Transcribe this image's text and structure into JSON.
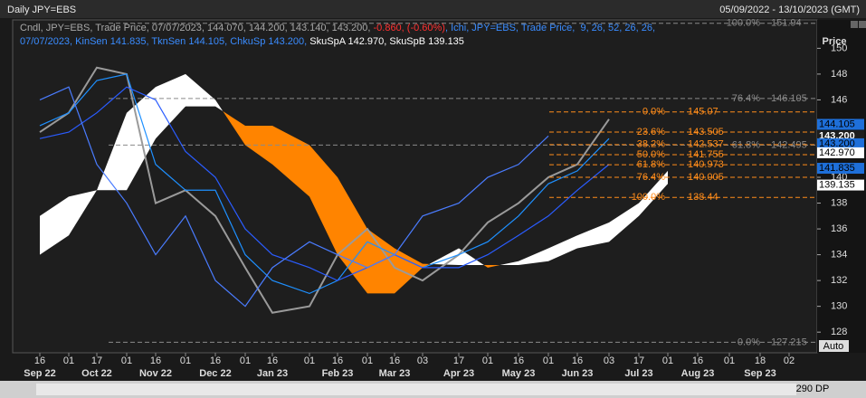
{
  "header": {
    "title": "Daily JPY=EBS",
    "range": "05/09/2022 - 13/10/2023 (GMT)"
  },
  "legend": {
    "line1": [
      {
        "text": "Cndl, JPY=EBS, Trade Price, 07/07/2023, 144.070, 144.200, 143.140, 143.200, ",
        "color": "#a8a8a8"
      },
      {
        "text": "-0.860, (-0.60%)",
        "color": "#ff3030"
      },
      {
        "text": ", Ichi, JPY=EBS, Trade Price,  9, 26, 52, 26, 26,",
        "color": "#3a8cff"
      }
    ],
    "line2": [
      {
        "text": "07/07/2023, KinSen 141.835, TknSen 144.105, ChkuSp 143.200, ",
        "color": "#3a8cff"
      },
      {
        "text": "SkuSpA 142.970, SkuSpB 139.135",
        "color": "#ffffff"
      }
    ]
  },
  "chart_data": {
    "type": "line",
    "y_axis_label": "Price",
    "x": [
      "16",
      "01",
      "17",
      "01",
      "16",
      "01",
      "16",
      "01",
      "16",
      "01",
      "16",
      "01",
      "16",
      "03",
      "17",
      "01",
      "16",
      "01",
      "16",
      "03",
      "17",
      "01",
      "16",
      "01",
      "18",
      "02"
    ],
    "months": [
      "Sep 22",
      "Oct 22",
      "Nov 22",
      "Dec 22",
      "Jan 23",
      "Feb 23",
      "Mar 23",
      "Apr 23",
      "May 23",
      "Jun 23",
      "Jul 23",
      "Aug 23",
      "Sep 23"
    ],
    "series": [
      {
        "name": "Price",
        "color": "#9a9a9a",
        "values": [
          143.5,
          145,
          148.5,
          148,
          138,
          139,
          137,
          133,
          129.5,
          130,
          134,
          136,
          133,
          132,
          134,
          136.5,
          138,
          140,
          141,
          144.5,
          null,
          null,
          null,
          null,
          null,
          null
        ]
      },
      {
        "name": "TknSen",
        "color": "#1e90ff",
        "values": [
          144,
          145,
          147.5,
          148,
          141,
          139,
          139,
          134,
          132,
          131,
          132,
          135,
          134,
          133,
          134,
          135,
          137,
          139.5,
          140.5,
          143,
          null,
          null,
          null,
          null,
          null,
          null
        ]
      },
      {
        "name": "KinSen",
        "color": "#2a5cff",
        "values": [
          143,
          143.5,
          145,
          147,
          146,
          142,
          140,
          136,
          134,
          133,
          132,
          133,
          134,
          133,
          133,
          134,
          135.5,
          137,
          139,
          141,
          null,
          null,
          null,
          null,
          null,
          null
        ]
      },
      {
        "name": "ChkuSp",
        "color": "#4a7cff",
        "values": [
          146,
          147,
          141,
          138,
          134,
          137,
          132,
          130,
          133,
          135,
          134,
          133,
          134,
          137,
          138,
          140,
          141,
          143.2,
          null,
          null,
          null,
          null,
          null,
          null,
          null,
          null
        ]
      },
      {
        "name": "SkuSpA",
        "values": [
          137,
          138.5,
          139,
          145,
          147,
          148,
          146,
          142.5,
          141,
          138.5,
          134,
          131,
          131,
          133,
          134.5,
          133,
          133.5,
          134.5,
          135.5,
          136.5,
          138,
          140.5,
          null,
          null,
          null,
          null
        ]
      },
      {
        "name": "SkuSpB",
        "values": [
          134,
          135.5,
          139,
          139,
          143,
          145.5,
          145.5,
          144,
          144,
          142.5,
          140,
          136,
          134.5,
          133.3,
          133.2,
          133.2,
          133.2,
          133.5,
          134.5,
          135,
          137,
          139.5,
          null,
          null,
          null,
          null
        ]
      }
    ],
    "cloud_up_color": "#ffffff",
    "cloud_down_color": "#ff8400",
    "ylim": [
      126.4,
      152.2
    ],
    "yticks": [
      128,
      130,
      132,
      134,
      136,
      138,
      140,
      142,
      144,
      146,
      148,
      150
    ],
    "fib_a": {
      "color": "#8a8a8a",
      "levels": [
        {
          "label": "100.0%",
          "value": 151.94
        },
        {
          "label": "76.4%",
          "value": 146.105
        },
        {
          "label": "61.8%",
          "value": 142.495
        },
        {
          "label": "0.0%",
          "value": 127.215
        }
      ]
    },
    "fib_b": {
      "color": "#ff8c1a",
      "levels": [
        {
          "label": "0.0%",
          "value": 145.07
        },
        {
          "label": "23.6%",
          "value": 143.505
        },
        {
          "label": "38.2%",
          "value": 142.537
        },
        {
          "label": "50.0%",
          "value": 141.755
        },
        {
          "label": "61.8%",
          "value": 140.973
        },
        {
          "label": "76.4%",
          "value": 140.005
        },
        {
          "label": "100.0%",
          "value": 138.44
        }
      ]
    },
    "tags": [
      {
        "label": "144.105",
        "value": 144.105,
        "color": "#1e6fd9",
        "text_color": "#000000"
      },
      {
        "label": "143.200",
        "value": 143.2,
        "color": "#1e1e1e",
        "text_color": "#ffffff"
      },
      {
        "label": "143.200",
        "value": 142.6,
        "color": "#1e6fd9",
        "text_color": "#000000"
      },
      {
        "label": "142.970",
        "value": 141.9,
        "color": "#ffffff",
        "text_color": "#000000"
      },
      {
        "label": "141.835",
        "value": 140.7,
        "color": "#1e6fd9",
        "text_color": "#000000"
      },
      {
        "label": "139.135",
        "value": 139.4,
        "color": "#ffffff",
        "text_color": "#000000"
      }
    ]
  },
  "controls": {
    "auto": "Auto",
    "zoom": "290 DP"
  }
}
